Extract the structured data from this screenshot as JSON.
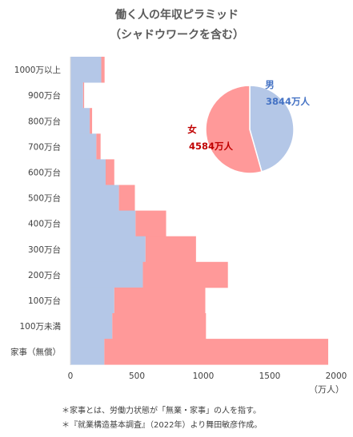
{
  "chart_data": [
    {
      "type": "bar",
      "orientation": "horizontal",
      "stacked": true,
      "title": "働く人の年収ピラミッド",
      "subtitle": "（シャドウワークを含む）",
      "categories": [
        "1000万以上",
        "900万台",
        "800万台",
        "700万台",
        "600万台",
        "500万台",
        "400万台",
        "300万台",
        "200万台",
        "100万台",
        "100万未満",
        "家事（無償）"
      ],
      "series": [
        {
          "key": "male",
          "values": [
            232,
            95,
            145,
            195,
            265,
            365,
            490,
            565,
            545,
            330,
            315,
            255
          ],
          "color": "#b4c7e7"
        },
        {
          "key": "female",
          "values": [
            25,
            8,
            18,
            32,
            65,
            120,
            230,
            380,
            640,
            685,
            705,
            1685
          ],
          "color": "#ff9999"
        }
      ],
      "xlim": [
        0,
        2000
      ],
      "xticks": [
        "0",
        "500",
        "1000",
        "1500",
        "2000"
      ],
      "xunit": "（万人）",
      "legend": "none"
    },
    {
      "type": "pie",
      "slices": [
        {
          "key": "male",
          "name": "男",
          "value": 3844,
          "label": "3844万人",
          "color": "#b4c7e7",
          "text_color": "#4472c4"
        },
        {
          "key": "female",
          "name": "女",
          "value": 4584,
          "label": "4584万人",
          "color": "#ff9999",
          "text_color": "#c00000"
        }
      ]
    }
  ],
  "notes": [
    "＊家事とは、労働力状態が「無業・家事」の人を指す。",
    "＊『就業構造基本調査』（2022年）より舞田敏彦作成。"
  ]
}
